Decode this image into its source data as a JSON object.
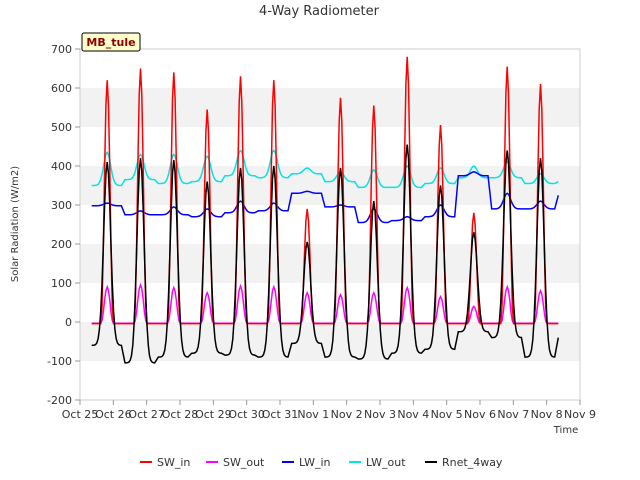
{
  "chart_data": {
    "type": "line",
    "title": "4-Way Radiometer",
    "xlabel": "Time",
    "ylabel": "Solar Radiation (W/m2)",
    "badge": "MB_tule",
    "ylim": [
      -200,
      700
    ],
    "yticks": [
      -200,
      -100,
      0,
      100,
      200,
      300,
      400,
      500,
      600,
      700
    ],
    "xlim": [
      0,
      15
    ],
    "xticks": [
      {
        "x": 0,
        "label": "Oct 25"
      },
      {
        "x": 1,
        "label": "Oct 26"
      },
      {
        "x": 2,
        "label": "Oct 27"
      },
      {
        "x": 3,
        "label": "Oct 28"
      },
      {
        "x": 4,
        "label": "Oct 29"
      },
      {
        "x": 5,
        "label": "Oct 30"
      },
      {
        "x": 6,
        "label": "Oct 31"
      },
      {
        "x": 7,
        "label": "Nov 1"
      },
      {
        "x": 8,
        "label": "Nov 2"
      },
      {
        "x": 9,
        "label": "Nov 3"
      },
      {
        "x": 10,
        "label": "Nov 4"
      },
      {
        "x": 11,
        "label": "Nov 5"
      },
      {
        "x": 12,
        "label": "Nov 6"
      },
      {
        "x": 13,
        "label": "Nov 7"
      },
      {
        "x": 14,
        "label": "Nov 8"
      },
      {
        "x": 15,
        "label": "Nov 9"
      }
    ],
    "grid": "horizontal bands",
    "legend_position": "bottom",
    "days": [
      "Oct 25",
      "Oct 26",
      "Oct 27",
      "Oct 28",
      "Oct 29",
      "Oct 30",
      "Oct 31",
      "Nov 1",
      "Nov 2",
      "Nov 3",
      "Nov 4",
      "Nov 5",
      "Nov 6",
      "Nov 7",
      "Nov 8"
    ],
    "series": [
      {
        "name": "SW_in",
        "color": "#ff0000",
        "daily_peak": [
          620,
          650,
          640,
          545,
          630,
          620,
          290,
          575,
          555,
          680,
          505,
          280,
          655,
          610,
          null
        ],
        "night_value": -4
      },
      {
        "name": "SW_out",
        "color": "#ff00ff",
        "daily_peak": [
          90,
          95,
          88,
          75,
          92,
          90,
          75,
          70,
          75,
          88,
          65,
          40,
          90,
          80,
          null
        ],
        "night_value": -3
      },
      {
        "name": "LW_in",
        "color": "#0000ff",
        "daily_peak": [
          305,
          285,
          295,
          290,
          310,
          305,
          335,
          300,
          290,
          270,
          300,
          385,
          330,
          310,
          null
        ],
        "night_value": [
          298,
          275,
          275,
          270,
          280,
          285,
          330,
          295,
          255,
          260,
          270,
          375,
          290,
          290,
          325
        ]
      },
      {
        "name": "LW_out",
        "color": "#00e5e5",
        "daily_peak": [
          435,
          430,
          430,
          425,
          440,
          440,
          395,
          385,
          390,
          400,
          395,
          400,
          410,
          380,
          null
        ],
        "night_value": [
          350,
          365,
          355,
          360,
          375,
          370,
          380,
          360,
          345,
          345,
          355,
          370,
          370,
          355,
          360
        ]
      },
      {
        "name": "Rnet_4way",
        "color": "#000000",
        "daily_peak": [
          410,
          420,
          415,
          360,
          395,
          400,
          205,
          395,
          310,
          455,
          350,
          230,
          440,
          420,
          null
        ],
        "night_value": [
          -60,
          -105,
          -90,
          -80,
          -85,
          -90,
          -55,
          -90,
          -95,
          -80,
          -70,
          -25,
          -40,
          -90,
          -40
        ]
      }
    ]
  }
}
